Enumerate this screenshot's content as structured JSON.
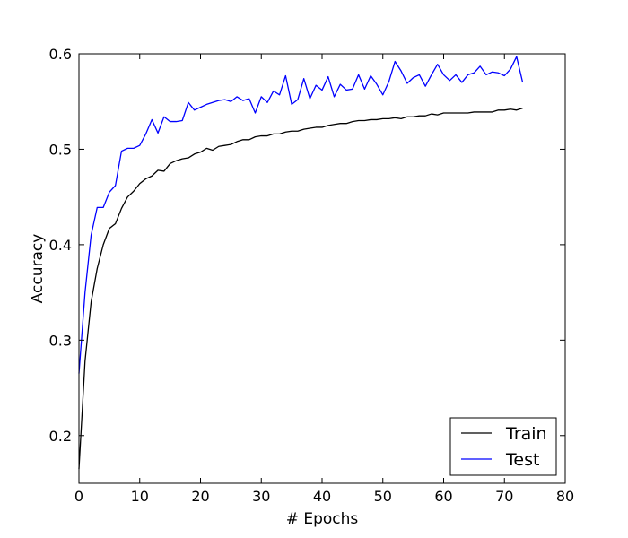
{
  "chart_data": {
    "type": "line",
    "title": "",
    "xlabel": "# Epochs",
    "ylabel": "Accuracy",
    "xlim": [
      0,
      80
    ],
    "ylim": [
      0.15,
      0.6
    ],
    "xticks": [
      0,
      10,
      20,
      30,
      40,
      50,
      60,
      70,
      80
    ],
    "yticks": [
      0.2,
      0.3,
      0.4,
      0.5,
      0.6
    ],
    "xtick_labels": [
      "0",
      "10",
      "20",
      "30",
      "40",
      "50",
      "60",
      "70",
      "80"
    ],
    "ytick_labels": [
      "0.2",
      "0.3",
      "0.4",
      "0.5",
      "0.6"
    ],
    "grid": false,
    "legend_position": "bottom-right",
    "x": [
      0,
      1,
      2,
      3,
      4,
      5,
      6,
      7,
      8,
      9,
      10,
      11,
      12,
      13,
      14,
      15,
      16,
      17,
      18,
      19,
      20,
      21,
      22,
      23,
      24,
      25,
      26,
      27,
      28,
      29,
      30,
      31,
      32,
      33,
      34,
      35,
      36,
      37,
      38,
      39,
      40,
      41,
      42,
      43,
      44,
      45,
      46,
      47,
      48,
      49,
      50,
      51,
      52,
      53,
      54,
      55,
      56,
      57,
      58,
      59,
      60,
      61,
      62,
      63,
      64,
      65,
      66,
      67,
      68,
      69,
      70,
      71,
      72,
      73
    ],
    "series": [
      {
        "name": "Train",
        "color": "#000000",
        "values": [
          0.165,
          0.278,
          0.34,
          0.375,
          0.4,
          0.417,
          0.422,
          0.438,
          0.45,
          0.456,
          0.464,
          0.469,
          0.472,
          0.478,
          0.477,
          0.485,
          0.488,
          0.49,
          0.491,
          0.495,
          0.497,
          0.501,
          0.499,
          0.503,
          0.504,
          0.505,
          0.508,
          0.51,
          0.51,
          0.513,
          0.514,
          0.514,
          0.516,
          0.516,
          0.518,
          0.519,
          0.519,
          0.521,
          0.522,
          0.523,
          0.523,
          0.525,
          0.526,
          0.527,
          0.527,
          0.529,
          0.53,
          0.53,
          0.531,
          0.531,
          0.532,
          0.532,
          0.533,
          0.532,
          0.534,
          0.534,
          0.535,
          0.535,
          0.537,
          0.536,
          0.538,
          0.538,
          0.538,
          0.538,
          0.538,
          0.539,
          0.539,
          0.539,
          0.539,
          0.541,
          0.541,
          0.542,
          0.541,
          0.543
        ]
      },
      {
        "name": "Test",
        "color": "#0000ff",
        "values": [
          0.265,
          0.35,
          0.41,
          0.439,
          0.439,
          0.455,
          0.462,
          0.498,
          0.501,
          0.501,
          0.504,
          0.516,
          0.531,
          0.517,
          0.534,
          0.529,
          0.529,
          0.53,
          0.549,
          0.541,
          0.544,
          0.547,
          0.549,
          0.551,
          0.552,
          0.55,
          0.555,
          0.551,
          0.553,
          0.538,
          0.555,
          0.549,
          0.561,
          0.557,
          0.577,
          0.547,
          0.552,
          0.574,
          0.553,
          0.567,
          0.562,
          0.576,
          0.555,
          0.568,
          0.562,
          0.563,
          0.578,
          0.563,
          0.577,
          0.568,
          0.557,
          0.571,
          0.592,
          0.582,
          0.569,
          0.575,
          0.578,
          0.566,
          0.578,
          0.589,
          0.578,
          0.572,
          0.578,
          0.57,
          0.578,
          0.58,
          0.587,
          0.578,
          0.581,
          0.58,
          0.577,
          0.584,
          0.597,
          0.57
        ]
      }
    ]
  }
}
